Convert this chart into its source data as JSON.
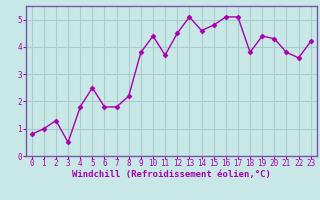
{
  "x": [
    0,
    1,
    2,
    3,
    4,
    5,
    6,
    7,
    8,
    9,
    10,
    11,
    12,
    13,
    14,
    15,
    16,
    17,
    18,
    19,
    20,
    21,
    22,
    23
  ],
  "y": [
    0.8,
    1.0,
    1.3,
    0.5,
    1.8,
    2.5,
    1.8,
    1.8,
    2.2,
    3.8,
    4.4,
    3.7,
    4.5,
    5.1,
    4.6,
    4.8,
    5.1,
    5.1,
    3.8,
    4.4,
    4.3,
    3.8,
    3.6,
    4.2
  ],
  "line_color": "#aa00aa",
  "marker": "D",
  "marker_size": 2.5,
  "bg_color": "#c8e8e8",
  "grid_color": "#aacccc",
  "xlabel": "Windchill (Refroidissement éolien,°C)",
  "ylim": [
    0,
    5.5
  ],
  "xlim": [
    -0.5,
    23.5
  ],
  "yticks": [
    0,
    1,
    2,
    3,
    4,
    5
  ],
  "xticks": [
    0,
    1,
    2,
    3,
    4,
    5,
    6,
    7,
    8,
    9,
    10,
    11,
    12,
    13,
    14,
    15,
    16,
    17,
    18,
    19,
    20,
    21,
    22,
    23
  ],
  "tick_label_color": "#aa00aa",
  "xlabel_color": "#aa00aa",
  "xlabel_fontsize": 6.5,
  "tick_fontsize": 5.5,
  "line_width": 1.0,
  "border_color": "#7755aa"
}
